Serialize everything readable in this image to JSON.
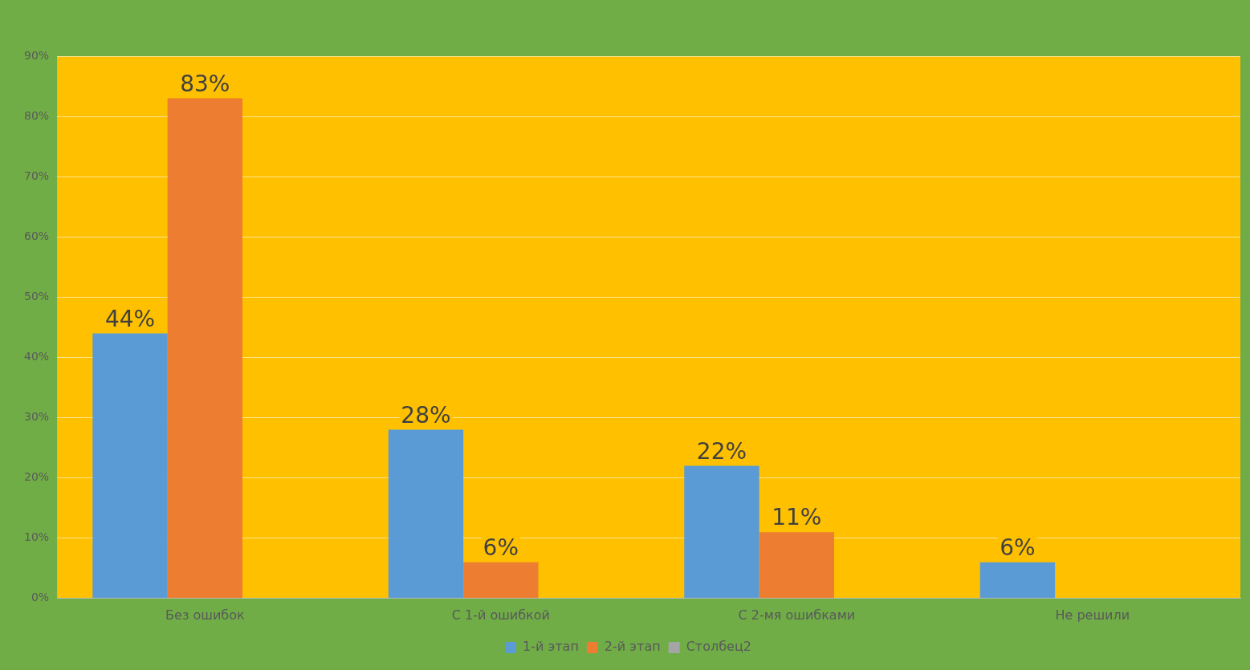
{
  "chart_data": {
    "type": "bar",
    "categories": [
      "Без ошибок",
      "С 1-й ошибкой",
      "С 2-мя ошибками",
      "Не решили"
    ],
    "series": [
      {
        "name": "1-й этап",
        "color": "#5b9bd5",
        "values": [
          44,
          28,
          22,
          6
        ],
        "value_labels": [
          "44%",
          "28%",
          "22%",
          "6%"
        ]
      },
      {
        "name": "2-й этап",
        "color": "#ed7d31",
        "values": [
          83,
          6,
          11,
          null
        ],
        "value_labels": [
          "83%",
          "6%",
          "11%",
          null
        ]
      },
      {
        "name": "Столбец2",
        "color": "#a5a5a5",
        "values": [
          null,
          null,
          null,
          null
        ]
      }
    ],
    "ylim": [
      0,
      90
    ],
    "yticks": [
      {
        "value": 0,
        "label": "0%"
      },
      {
        "value": 10,
        "label": "10%"
      },
      {
        "value": 20,
        "label": "20%"
      },
      {
        "value": 30,
        "label": "30%"
      },
      {
        "value": 40,
        "label": "40%"
      },
      {
        "value": 50,
        "label": "50%"
      },
      {
        "value": 60,
        "label": "60%"
      },
      {
        "value": 70,
        "label": "70%"
      },
      {
        "value": 80,
        "label": "80%"
      },
      {
        "value": 90,
        "label": "90%"
      }
    ],
    "grid": "y",
    "legend": "bottom"
  }
}
